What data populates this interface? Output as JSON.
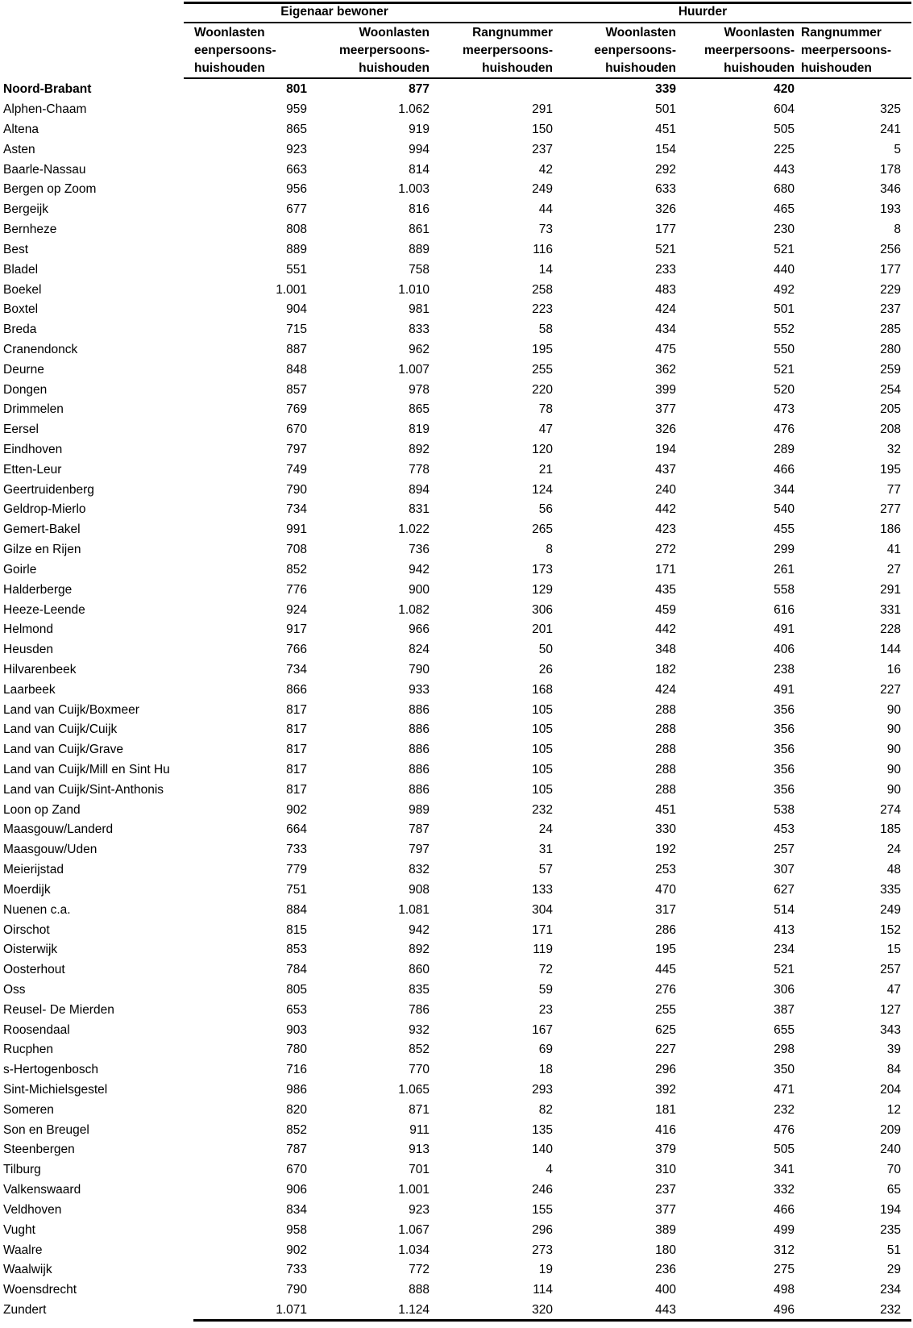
{
  "table": {
    "group_headers": [
      {
        "label": "Eigenaar bewoner"
      },
      {
        "label": "Huurder"
      }
    ],
    "column_headers": [
      {
        "lines": [
          "Woonlasten",
          "eenpersoons-",
          "huishouden"
        ],
        "align": "left"
      },
      {
        "lines": [
          "Woonlasten",
          "meerpersoons-",
          "huishouden"
        ],
        "align": "right"
      },
      {
        "lines": [
          "Rangnummer",
          "meerpersoons-",
          "huishouden"
        ],
        "align": "right"
      },
      {
        "lines": [
          "Woonlasten",
          "eenpersoons-",
          "huishouden"
        ],
        "align": "right"
      },
      {
        "lines": [
          "Woonlasten",
          "meerpersoons-",
          "huishouden"
        ],
        "align": "right"
      },
      {
        "lines": [
          "Rangnummer",
          "meerpersoons-",
          "huishouden"
        ],
        "align": "left"
      }
    ],
    "rows": [
      {
        "label": "Noord-Brabant",
        "bold": true,
        "values": [
          "801",
          "877",
          "",
          "339",
          "420",
          ""
        ]
      },
      {
        "label": "Alphen-Chaam",
        "bold": false,
        "values": [
          "959",
          "1.062",
          "291",
          "501",
          "604",
          "325"
        ]
      },
      {
        "label": "Altena",
        "bold": false,
        "values": [
          "865",
          "919",
          "150",
          "451",
          "505",
          "241"
        ]
      },
      {
        "label": "Asten",
        "bold": false,
        "values": [
          "923",
          "994",
          "237",
          "154",
          "225",
          "5"
        ]
      },
      {
        "label": "Baarle-Nassau",
        "bold": false,
        "values": [
          "663",
          "814",
          "42",
          "292",
          "443",
          "178"
        ]
      },
      {
        "label": "Bergen op Zoom",
        "bold": false,
        "values": [
          "956",
          "1.003",
          "249",
          "633",
          "680",
          "346"
        ]
      },
      {
        "label": "Bergeijk",
        "bold": false,
        "values": [
          "677",
          "816",
          "44",
          "326",
          "465",
          "193"
        ]
      },
      {
        "label": "Bernheze",
        "bold": false,
        "values": [
          "808",
          "861",
          "73",
          "177",
          "230",
          "8"
        ]
      },
      {
        "label": "Best",
        "bold": false,
        "values": [
          "889",
          "889",
          "116",
          "521",
          "521",
          "256"
        ]
      },
      {
        "label": "Bladel",
        "bold": false,
        "values": [
          "551",
          "758",
          "14",
          "233",
          "440",
          "177"
        ]
      },
      {
        "label": "Boekel",
        "bold": false,
        "values": [
          "1.001",
          "1.010",
          "258",
          "483",
          "492",
          "229"
        ]
      },
      {
        "label": "Boxtel",
        "bold": false,
        "values": [
          "904",
          "981",
          "223",
          "424",
          "501",
          "237"
        ]
      },
      {
        "label": "Breda",
        "bold": false,
        "values": [
          "715",
          "833",
          "58",
          "434",
          "552",
          "285"
        ]
      },
      {
        "label": "Cranendonck",
        "bold": false,
        "values": [
          "887",
          "962",
          "195",
          "475",
          "550",
          "280"
        ]
      },
      {
        "label": "Deurne",
        "bold": false,
        "values": [
          "848",
          "1.007",
          "255",
          "362",
          "521",
          "259"
        ]
      },
      {
        "label": "Dongen",
        "bold": false,
        "values": [
          "857",
          "978",
          "220",
          "399",
          "520",
          "254"
        ]
      },
      {
        "label": "Drimmelen",
        "bold": false,
        "values": [
          "769",
          "865",
          "78",
          "377",
          "473",
          "205"
        ]
      },
      {
        "label": "Eersel",
        "bold": false,
        "values": [
          "670",
          "819",
          "47",
          "326",
          "476",
          "208"
        ]
      },
      {
        "label": "Eindhoven",
        "bold": false,
        "values": [
          "797",
          "892",
          "120",
          "194",
          "289",
          "32"
        ]
      },
      {
        "label": "Etten-Leur",
        "bold": false,
        "values": [
          "749",
          "778",
          "21",
          "437",
          "466",
          "195"
        ]
      },
      {
        "label": "Geertruidenberg",
        "bold": false,
        "values": [
          "790",
          "894",
          "124",
          "240",
          "344",
          "77"
        ]
      },
      {
        "label": "Geldrop-Mierlo",
        "bold": false,
        "values": [
          "734",
          "831",
          "56",
          "442",
          "540",
          "277"
        ]
      },
      {
        "label": "Gemert-Bakel",
        "bold": false,
        "values": [
          "991",
          "1.022",
          "265",
          "423",
          "455",
          "186"
        ]
      },
      {
        "label": "Gilze en Rijen",
        "bold": false,
        "values": [
          "708",
          "736",
          "8",
          "272",
          "299",
          "41"
        ]
      },
      {
        "label": "Goirle",
        "bold": false,
        "values": [
          "852",
          "942",
          "173",
          "171",
          "261",
          "27"
        ]
      },
      {
        "label": "Halderberge",
        "bold": false,
        "values": [
          "776",
          "900",
          "129",
          "435",
          "558",
          "291"
        ]
      },
      {
        "label": "Heeze-Leende",
        "bold": false,
        "values": [
          "924",
          "1.082",
          "306",
          "459",
          "616",
          "331"
        ]
      },
      {
        "label": "Helmond",
        "bold": false,
        "values": [
          "917",
          "966",
          "201",
          "442",
          "491",
          "228"
        ]
      },
      {
        "label": "Heusden",
        "bold": false,
        "values": [
          "766",
          "824",
          "50",
          "348",
          "406",
          "144"
        ]
      },
      {
        "label": "Hilvarenbeek",
        "bold": false,
        "values": [
          "734",
          "790",
          "26",
          "182",
          "238",
          "16"
        ]
      },
      {
        "label": "Laarbeek",
        "bold": false,
        "values": [
          "866",
          "933",
          "168",
          "424",
          "491",
          "227"
        ]
      },
      {
        "label": "Land van Cuijk/Boxmeer",
        "bold": false,
        "values": [
          "817",
          "886",
          "105",
          "288",
          "356",
          "90"
        ]
      },
      {
        "label": "Land van Cuijk/Cuijk",
        "bold": false,
        "values": [
          "817",
          "886",
          "105",
          "288",
          "356",
          "90"
        ]
      },
      {
        "label": "Land van Cuijk/Grave",
        "bold": false,
        "values": [
          "817",
          "886",
          "105",
          "288",
          "356",
          "90"
        ]
      },
      {
        "label": "Land van Cuijk/Mill en Sint Hu",
        "bold": false,
        "values": [
          "817",
          "886",
          "105",
          "288",
          "356",
          "90"
        ]
      },
      {
        "label": "Land van Cuijk/Sint-Anthonis",
        "bold": false,
        "values": [
          "817",
          "886",
          "105",
          "288",
          "356",
          "90"
        ]
      },
      {
        "label": "Loon op Zand",
        "bold": false,
        "values": [
          "902",
          "989",
          "232",
          "451",
          "538",
          "274"
        ]
      },
      {
        "label": "Maasgouw/Landerd",
        "bold": false,
        "values": [
          "664",
          "787",
          "24",
          "330",
          "453",
          "185"
        ]
      },
      {
        "label": "Maasgouw/Uden",
        "bold": false,
        "values": [
          "733",
          "797",
          "31",
          "192",
          "257",
          "24"
        ]
      },
      {
        "label": "Meierijstad",
        "bold": false,
        "values": [
          "779",
          "832",
          "57",
          "253",
          "307",
          "48"
        ]
      },
      {
        "label": "Moerdijk",
        "bold": false,
        "values": [
          "751",
          "908",
          "133",
          "470",
          "627",
          "335"
        ]
      },
      {
        "label": "Nuenen c.a.",
        "bold": false,
        "values": [
          "884",
          "1.081",
          "304",
          "317",
          "514",
          "249"
        ]
      },
      {
        "label": "Oirschot",
        "bold": false,
        "values": [
          "815",
          "942",
          "171",
          "286",
          "413",
          "152"
        ]
      },
      {
        "label": "Oisterwijk",
        "bold": false,
        "values": [
          "853",
          "892",
          "119",
          "195",
          "234",
          "15"
        ]
      },
      {
        "label": "Oosterhout",
        "bold": false,
        "values": [
          "784",
          "860",
          "72",
          "445",
          "521",
          "257"
        ]
      },
      {
        "label": "Oss",
        "bold": false,
        "values": [
          "805",
          "835",
          "59",
          "276",
          "306",
          "47"
        ]
      },
      {
        "label": "Reusel- De Mierden",
        "bold": false,
        "values": [
          "653",
          "786",
          "23",
          "255",
          "387",
          "127"
        ]
      },
      {
        "label": "Roosendaal",
        "bold": false,
        "values": [
          "903",
          "932",
          "167",
          "625",
          "655",
          "343"
        ]
      },
      {
        "label": "Rucphen",
        "bold": false,
        "values": [
          "780",
          "852",
          "69",
          "227",
          "298",
          "39"
        ]
      },
      {
        "label": "s-Hertogenbosch",
        "bold": false,
        "values": [
          "716",
          "770",
          "18",
          "296",
          "350",
          "84"
        ]
      },
      {
        "label": "Sint-Michielsgestel",
        "bold": false,
        "values": [
          "986",
          "1.065",
          "293",
          "392",
          "471",
          "204"
        ]
      },
      {
        "label": "Someren",
        "bold": false,
        "values": [
          "820",
          "871",
          "82",
          "181",
          "232",
          "12"
        ]
      },
      {
        "label": "Son en Breugel",
        "bold": false,
        "values": [
          "852",
          "911",
          "135",
          "416",
          "476",
          "209"
        ]
      },
      {
        "label": "Steenbergen",
        "bold": false,
        "values": [
          "787",
          "913",
          "140",
          "379",
          "505",
          "240"
        ]
      },
      {
        "label": "Tilburg",
        "bold": false,
        "values": [
          "670",
          "701",
          "4",
          "310",
          "341",
          "70"
        ]
      },
      {
        "label": "Valkenswaard",
        "bold": false,
        "values": [
          "906",
          "1.001",
          "246",
          "237",
          "332",
          "65"
        ]
      },
      {
        "label": "Veldhoven",
        "bold": false,
        "values": [
          "834",
          "923",
          "155",
          "377",
          "466",
          "194"
        ]
      },
      {
        "label": "Vught",
        "bold": false,
        "values": [
          "958",
          "1.067",
          "296",
          "389",
          "499",
          "235"
        ]
      },
      {
        "label": "Waalre",
        "bold": false,
        "values": [
          "902",
          "1.034",
          "273",
          "180",
          "312",
          "51"
        ]
      },
      {
        "label": "Waalwijk",
        "bold": false,
        "values": [
          "733",
          "772",
          "19",
          "236",
          "275",
          "29"
        ]
      },
      {
        "label": "Woensdrecht",
        "bold": false,
        "values": [
          "790",
          "888",
          "114",
          "400",
          "498",
          "234"
        ]
      },
      {
        "label": "Zundert",
        "bold": false,
        "values": [
          "1.071",
          "1.124",
          "320",
          "443",
          "496",
          "232"
        ]
      }
    ]
  },
  "colors": {
    "text": "#000000",
    "line": "#000000",
    "background": "#ffffff"
  }
}
